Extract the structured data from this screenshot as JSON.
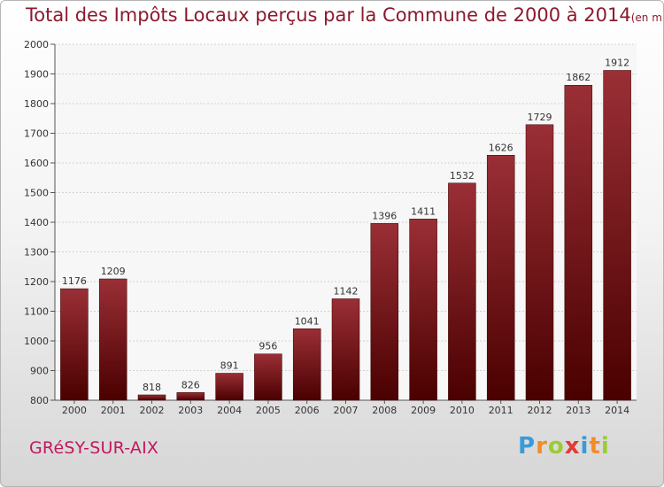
{
  "title": "Total des Impôts Locaux perçus par la Commune de 2000 à 2014",
  "title_unit": "(en milliers d'€)",
  "commune_name": "GRéSY-SUR-AIX",
  "logo": {
    "text": "Proxiti",
    "letters": [
      {
        "char": "P",
        "color": "#3a9ad9"
      },
      {
        "char": "r",
        "color": "#f28c28"
      },
      {
        "char": "o",
        "color": "#9acd32"
      },
      {
        "char": "x",
        "color": "#e53935"
      },
      {
        "char": "i",
        "color": "#3a9ad9"
      },
      {
        "char": "t",
        "color": "#f28c28"
      },
      {
        "char": "i",
        "color": "#9acd32"
      }
    ]
  },
  "colors": {
    "bar_top": "#9a2f36",
    "bar_bottom": "#4a0000",
    "title": "#8b1a2e",
    "commune": "#c2185b"
  },
  "chart_data": {
    "type": "bar",
    "title": "Total des Impôts Locaux perçus par la Commune de 2000 à 2014",
    "ylabel": "",
    "xlabel": "",
    "categories": [
      "2000",
      "2001",
      "2002",
      "2003",
      "2004",
      "2005",
      "2006",
      "2007",
      "2008",
      "2009",
      "2010",
      "2011",
      "2012",
      "2013",
      "2014"
    ],
    "values": [
      1176,
      1209,
      818,
      826,
      891,
      956,
      1041,
      1142,
      1396,
      1411,
      1532,
      1626,
      1729,
      1862,
      1912
    ],
    "ylim": [
      800,
      2000
    ],
    "yticks": [
      800,
      900,
      1000,
      1100,
      1200,
      1300,
      1400,
      1500,
      1600,
      1700,
      1800,
      1900,
      2000
    ],
    "grid": true
  }
}
